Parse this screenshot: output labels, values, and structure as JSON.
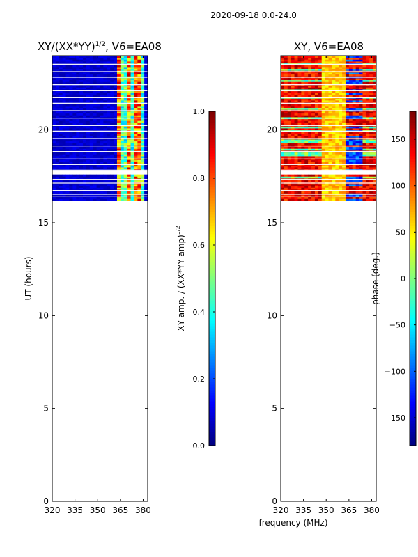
{
  "suptitle": "2020-09-18 0.0-24.0",
  "colors": {
    "figure_bg": "#ffffff",
    "axis": "#000000",
    "jet": [
      "#00007f",
      "#0000ff",
      "#007fff",
      "#00ffff",
      "#7fff7f",
      "#ffff00",
      "#ff7f00",
      "#ff0000",
      "#7f0000"
    ]
  },
  "chart_data": [
    {
      "type": "heatmap",
      "title": "XY/(XX*YY)",
      "title_sup": "1/2",
      "title_suffix": ", V6=EA08",
      "xlabel": "",
      "ylabel": "UT (hours)",
      "xlim": [
        320,
        383
      ],
      "ylim": [
        0,
        24
      ],
      "xticks": [
        320,
        335,
        350,
        365,
        380
      ],
      "yticks": [
        0,
        5,
        10,
        15,
        20
      ],
      "data_extent_hours": [
        16.2,
        24.0
      ],
      "pattern": "amplitude: mostly low (~0.05) below 362 MHz, high and striped (0.3-0.95) in 362-380 MHz",
      "colorbar": {
        "label": "XY amp. / (XX*YY amp)",
        "label_sup": "1/2",
        "range": [
          0.0,
          1.0
        ],
        "ticks": [
          "0.0",
          "0.2",
          "0.4",
          "0.6",
          "0.8",
          "1.0"
        ]
      }
    },
    {
      "type": "heatmap",
      "title": "XY, V6=EA08",
      "xlabel": "frequency (MHz)",
      "ylabel": "",
      "xlim": [
        320,
        383
      ],
      "ylim": [
        0,
        24
      ],
      "xticks": [
        320,
        335,
        350,
        365,
        380
      ],
      "yticks": [
        0,
        5,
        10,
        15,
        20
      ],
      "data_extent_hours": [
        16.2,
        24.0
      ],
      "pattern": "phase: mostly +100 to +180 deg with horizontal banding, yellow/green region near 350-360 MHz, blue bands near 355-370 MHz",
      "colorbar": {
        "label": "phase (deg.)",
        "range": [
          -180,
          180
        ],
        "ticks": [
          "−150",
          "−100",
          "−50",
          "0",
          "50",
          "100",
          "150"
        ]
      }
    }
  ]
}
